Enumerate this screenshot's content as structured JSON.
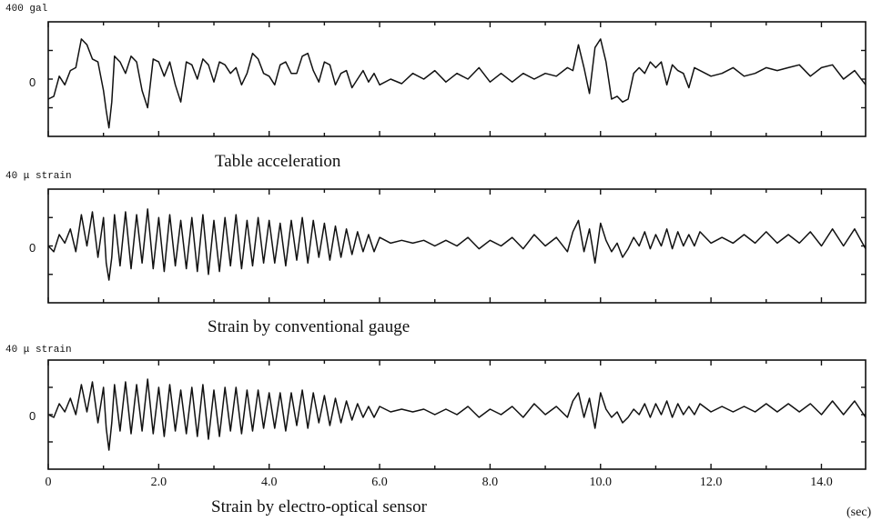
{
  "chart_data": [
    {
      "type": "line",
      "scale_label": "400 gal",
      "zero_label": "0",
      "caption": "Table acceleration",
      "xlim": [
        0,
        14.8
      ],
      "ylim": [
        -1,
        1
      ],
      "series": [
        {
          "x": [
            0,
            0.1,
            0.2,
            0.3,
            0.4,
            0.5,
            0.6,
            0.7,
            0.8,
            0.9,
            1.0,
            1.05,
            1.1,
            1.15,
            1.2,
            1.3,
            1.4,
            1.5,
            1.6,
            1.7,
            1.8,
            1.9,
            2.0,
            2.1,
            2.2,
            2.3,
            2.4,
            2.5,
            2.6,
            2.7,
            2.8,
            2.9,
            3.0,
            3.1,
            3.2,
            3.3,
            3.4,
            3.5,
            3.6,
            3.7,
            3.8,
            3.9,
            4.0,
            4.1,
            4.2,
            4.3,
            4.4,
            4.5,
            4.6,
            4.7,
            4.8,
            4.9,
            5.0,
            5.1,
            5.2,
            5.3,
            5.4,
            5.5,
            5.6,
            5.7,
            5.8,
            5.9,
            6.0,
            6.2,
            6.4,
            6.6,
            6.8,
            7.0,
            7.2,
            7.4,
            7.6,
            7.8,
            8.0,
            8.2,
            8.4,
            8.6,
            8.8,
            9.0,
            9.2,
            9.4,
            9.5,
            9.6,
            9.7,
            9.8,
            9.9,
            10.0,
            10.1,
            10.2,
            10.3,
            10.4,
            10.5,
            10.6,
            10.7,
            10.8,
            10.9,
            11.0,
            11.1,
            11.2,
            11.3,
            11.4,
            11.5,
            11.6,
            11.7,
            11.8,
            12.0,
            12.2,
            12.4,
            12.6,
            12.8,
            13.0,
            13.2,
            13.4,
            13.6,
            13.8,
            14.0,
            14.2,
            14.4,
            14.6,
            14.8
          ],
          "y": [
            -0.35,
            -0.3,
            0.05,
            -0.1,
            0.15,
            0.2,
            0.7,
            0.6,
            0.35,
            0.3,
            -0.2,
            -0.55,
            -0.85,
            -0.4,
            0.4,
            0.3,
            0.1,
            0.4,
            0.3,
            -0.2,
            -0.5,
            0.35,
            0.3,
            0.05,
            0.3,
            -0.1,
            -0.4,
            0.3,
            0.25,
            0.0,
            0.35,
            0.25,
            -0.05,
            0.3,
            0.25,
            0.1,
            0.2,
            -0.1,
            0.1,
            0.45,
            0.35,
            0.1,
            0.05,
            -0.1,
            0.25,
            0.3,
            0.1,
            0.1,
            0.4,
            0.45,
            0.15,
            -0.05,
            0.3,
            0.25,
            -0.1,
            0.1,
            0.15,
            -0.15,
            0.0,
            0.15,
            -0.05,
            0.1,
            -0.1,
            0.0,
            -0.08,
            0.1,
            0.0,
            0.15,
            -0.05,
            0.1,
            0.0,
            0.2,
            -0.05,
            0.1,
            -0.05,
            0.1,
            0.0,
            0.1,
            0.05,
            0.2,
            0.15,
            0.6,
            0.2,
            -0.25,
            0.55,
            0.7,
            0.3,
            -0.35,
            -0.3,
            -0.4,
            -0.35,
            0.1,
            0.2,
            0.1,
            0.3,
            0.2,
            0.3,
            -0.1,
            0.25,
            0.15,
            0.1,
            -0.15,
            0.2,
            0.15,
            0.05,
            0.1,
            0.2,
            0.05,
            0.1,
            0.2,
            0.15,
            0.2,
            0.25,
            0.05,
            0.2,
            0.25,
            0.0,
            0.15,
            -0.1
          ]
        }
      ]
    },
    {
      "type": "line",
      "scale_label": "40 μ strain",
      "zero_label": "0",
      "caption": "Strain by conventional gauge",
      "xlim": [
        0,
        14.8
      ],
      "ylim": [
        -1,
        1
      ],
      "series": [
        {
          "x": [
            0,
            0.1,
            0.2,
            0.3,
            0.4,
            0.5,
            0.6,
            0.7,
            0.8,
            0.9,
            1.0,
            1.05,
            1.1,
            1.15,
            1.2,
            1.3,
            1.4,
            1.5,
            1.6,
            1.7,
            1.8,
            1.9,
            2.0,
            2.1,
            2.2,
            2.3,
            2.4,
            2.5,
            2.6,
            2.7,
            2.8,
            2.9,
            3.0,
            3.1,
            3.2,
            3.3,
            3.4,
            3.5,
            3.6,
            3.7,
            3.8,
            3.9,
            4.0,
            4.1,
            4.2,
            4.3,
            4.4,
            4.5,
            4.6,
            4.7,
            4.8,
            4.9,
            5.0,
            5.1,
            5.2,
            5.3,
            5.4,
            5.5,
            5.6,
            5.7,
            5.8,
            5.9,
            6.0,
            6.2,
            6.4,
            6.6,
            6.8,
            7.0,
            7.2,
            7.4,
            7.6,
            7.8,
            8.0,
            8.2,
            8.4,
            8.6,
            8.8,
            9.0,
            9.2,
            9.4,
            9.5,
            9.6,
            9.7,
            9.8,
            9.9,
            10.0,
            10.1,
            10.2,
            10.3,
            10.4,
            10.5,
            10.6,
            10.7,
            10.8,
            10.9,
            11.0,
            11.1,
            11.2,
            11.3,
            11.4,
            11.5,
            11.6,
            11.7,
            11.8,
            12.0,
            12.2,
            12.4,
            12.6,
            12.8,
            13.0,
            13.2,
            13.4,
            13.6,
            13.8,
            14.0,
            14.2,
            14.4,
            14.6,
            14.8
          ],
          "y": [
            0.0,
            -0.1,
            0.2,
            0.05,
            0.3,
            -0.1,
            0.55,
            0.0,
            0.6,
            -0.2,
            0.5,
            -0.3,
            -0.6,
            -0.2,
            0.55,
            -0.35,
            0.6,
            -0.4,
            0.55,
            -0.3,
            0.65,
            -0.4,
            0.5,
            -0.45,
            0.55,
            -0.35,
            0.45,
            -0.4,
            0.5,
            -0.45,
            0.55,
            -0.5,
            0.45,
            -0.45,
            0.5,
            -0.35,
            0.55,
            -0.4,
            0.45,
            -0.35,
            0.5,
            -0.3,
            0.45,
            -0.3,
            0.4,
            -0.35,
            0.45,
            -0.25,
            0.5,
            -0.3,
            0.45,
            -0.2,
            0.4,
            -0.25,
            0.35,
            -0.2,
            0.3,
            -0.15,
            0.25,
            -0.1,
            0.2,
            -0.1,
            0.15,
            0.05,
            0.1,
            0.05,
            0.1,
            0.0,
            0.1,
            0.0,
            0.15,
            -0.05,
            0.1,
            0.0,
            0.15,
            -0.05,
            0.2,
            0.0,
            0.15,
            -0.1,
            0.25,
            0.45,
            -0.1,
            0.3,
            -0.3,
            0.4,
            0.1,
            -0.1,
            0.05,
            -0.2,
            -0.05,
            0.15,
            0.0,
            0.25,
            -0.05,
            0.2,
            0.0,
            0.3,
            -0.05,
            0.25,
            0.0,
            0.2,
            0.0,
            0.25,
            0.05,
            0.15,
            0.05,
            0.2,
            0.05,
            0.25,
            0.05,
            0.2,
            0.05,
            0.25,
            0.0,
            0.3,
            0.0,
            0.3,
            -0.05
          ]
        }
      ]
    },
    {
      "type": "line",
      "scale_label": "40 μ strain",
      "zero_label": "0",
      "caption": "Strain by electro-optical sensor",
      "xlim": [
        0,
        14.8
      ],
      "ylim": [
        -1,
        1
      ],
      "xticks": [
        "0",
        "2.0",
        "4.0",
        "6.0",
        "8.0",
        "10.0",
        "12.0",
        "14.0"
      ],
      "xtick_values": [
        0,
        2,
        4,
        6,
        8,
        10,
        12,
        14
      ],
      "xunit": "(sec)",
      "series": [
        {
          "x": [
            0,
            0.1,
            0.2,
            0.3,
            0.4,
            0.5,
            0.6,
            0.7,
            0.8,
            0.9,
            1.0,
            1.05,
            1.1,
            1.15,
            1.2,
            1.3,
            1.4,
            1.5,
            1.6,
            1.7,
            1.8,
            1.9,
            2.0,
            2.1,
            2.2,
            2.3,
            2.4,
            2.5,
            2.6,
            2.7,
            2.8,
            2.9,
            3.0,
            3.1,
            3.2,
            3.3,
            3.4,
            3.5,
            3.6,
            3.7,
            3.8,
            3.9,
            4.0,
            4.1,
            4.2,
            4.3,
            4.4,
            4.5,
            4.6,
            4.7,
            4.8,
            4.9,
            5.0,
            5.1,
            5.2,
            5.3,
            5.4,
            5.5,
            5.6,
            5.7,
            5.8,
            5.9,
            6.0,
            6.2,
            6.4,
            6.6,
            6.8,
            7.0,
            7.2,
            7.4,
            7.6,
            7.8,
            8.0,
            8.2,
            8.4,
            8.6,
            8.8,
            9.0,
            9.2,
            9.4,
            9.5,
            9.6,
            9.7,
            9.8,
            9.9,
            10.0,
            10.1,
            10.2,
            10.3,
            10.4,
            10.5,
            10.6,
            10.7,
            10.8,
            10.9,
            11.0,
            11.1,
            11.2,
            11.3,
            11.4,
            11.5,
            11.6,
            11.7,
            11.8,
            12.0,
            12.2,
            12.4,
            12.6,
            12.8,
            13.0,
            13.2,
            13.4,
            13.6,
            13.8,
            14.0,
            14.2,
            14.4,
            14.6,
            14.8
          ],
          "y": [
            0.0,
            -0.05,
            0.2,
            0.05,
            0.3,
            0.0,
            0.55,
            0.05,
            0.6,
            -0.15,
            0.5,
            -0.25,
            -0.65,
            -0.15,
            0.55,
            -0.3,
            0.6,
            -0.35,
            0.55,
            -0.3,
            0.65,
            -0.35,
            0.5,
            -0.4,
            0.55,
            -0.3,
            0.45,
            -0.35,
            0.5,
            -0.4,
            0.55,
            -0.45,
            0.45,
            -0.4,
            0.5,
            -0.3,
            0.5,
            -0.35,
            0.45,
            -0.3,
            0.45,
            -0.25,
            0.4,
            -0.25,
            0.4,
            -0.3,
            0.4,
            -0.2,
            0.45,
            -0.25,
            0.4,
            -0.15,
            0.35,
            -0.2,
            0.3,
            -0.15,
            0.25,
            -0.1,
            0.2,
            -0.05,
            0.15,
            -0.05,
            0.15,
            0.05,
            0.1,
            0.05,
            0.1,
            0.0,
            0.1,
            0.0,
            0.15,
            -0.05,
            0.1,
            0.0,
            0.15,
            -0.05,
            0.2,
            0.0,
            0.15,
            -0.05,
            0.25,
            0.4,
            -0.05,
            0.3,
            -0.25,
            0.4,
            0.1,
            -0.05,
            0.05,
            -0.15,
            -0.05,
            0.1,
            0.0,
            0.2,
            -0.05,
            0.2,
            0.0,
            0.25,
            -0.05,
            0.2,
            0.0,
            0.15,
            0.0,
            0.2,
            0.05,
            0.15,
            0.05,
            0.15,
            0.05,
            0.2,
            0.05,
            0.2,
            0.05,
            0.2,
            0.0,
            0.25,
            0.0,
            0.25,
            -0.05
          ]
        }
      ]
    }
  ]
}
